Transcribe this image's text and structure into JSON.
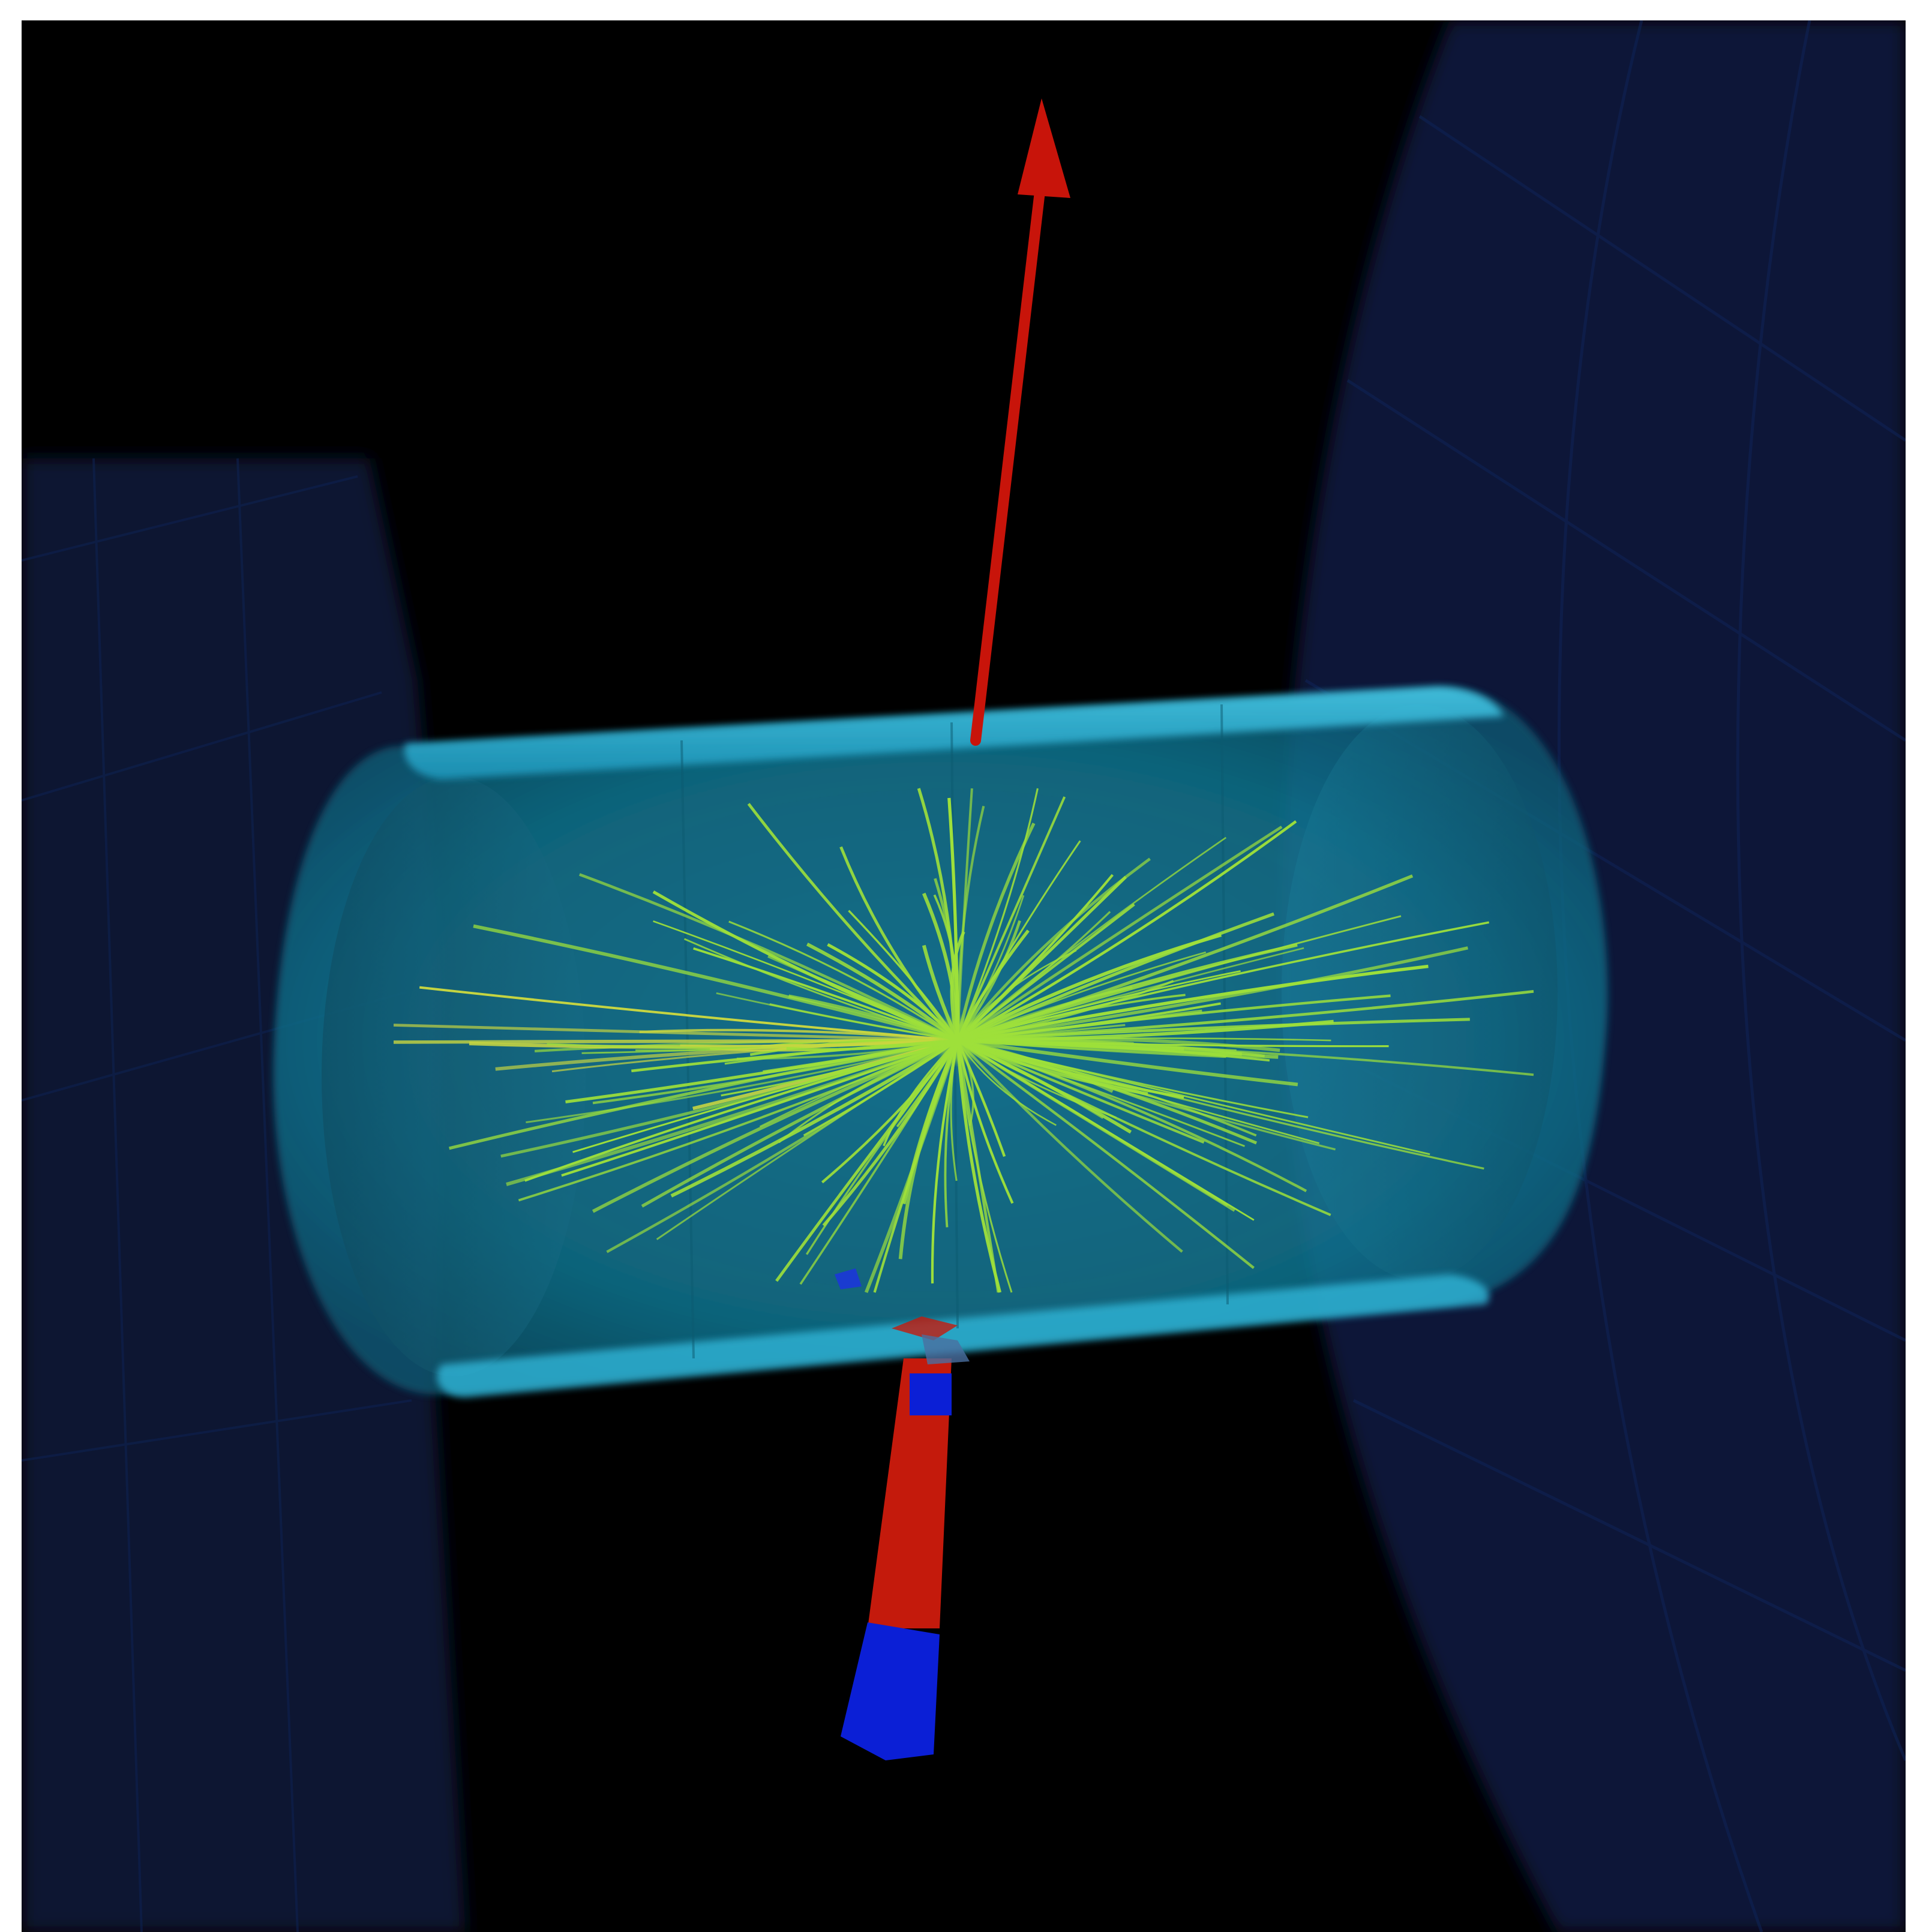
{
  "scene": {
    "background_color": "#000000",
    "frame_color": "#ffffff",
    "colors": {
      "outer_detector": "#081636",
      "outer_detector_edge": "#0c1f4a",
      "tracker_barrel": "#1fa6c8",
      "tracker_rim": "#3cc3e0",
      "tracks": "#9ee03a",
      "tracks_yellow": "#c9d640",
      "missing_energy_arrow": "#c8140a",
      "jet_hadronic": "#c41a0c",
      "jet_em": "#0b1fd6"
    },
    "objects": {
      "outer_detector_left": "outer-detector-left",
      "outer_detector_right": "outer-detector-right",
      "tracker_cylinder": "tracker-barrel",
      "track_bundle": "charged-particle-tracks",
      "upward_arrow": "missing-energy-arrow-icon",
      "downward_tower": "calorimeter-jet-tower"
    },
    "track_count": 160
  }
}
